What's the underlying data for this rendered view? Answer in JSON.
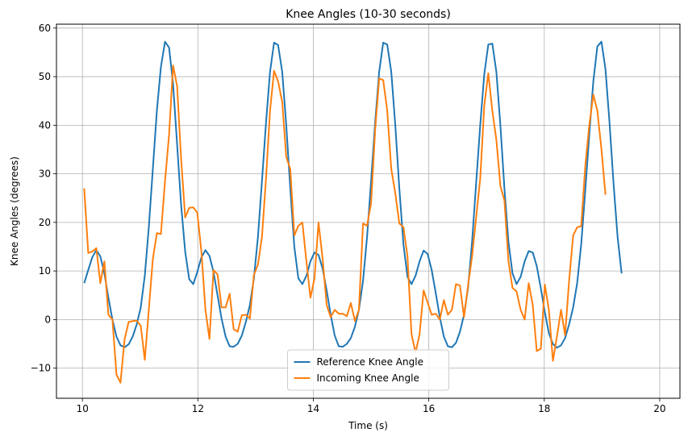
{
  "chart_data": {
    "type": "line",
    "title": "Knee Angles (10-30 seconds)",
    "xlabel": "Time (s)",
    "ylabel": "Knee Angles (degrees)",
    "xlim": [
      9.55,
      20.35
    ],
    "ylim": [
      -16.2,
      60.8
    ],
    "xticks": [
      10,
      12,
      14,
      16,
      18,
      20
    ],
    "yticks": [
      -10,
      0,
      10,
      20,
      30,
      40,
      50,
      60
    ],
    "grid": true,
    "legend_position": "lower-center",
    "series": [
      {
        "name": "Reference Knee Angle",
        "color": "#1f77b4",
        "points": [
          [
            10.03,
            7.5
          ],
          [
            10.1,
            10.2
          ],
          [
            10.17,
            12.8
          ],
          [
            10.24,
            14.3
          ],
          [
            10.31,
            13.0
          ],
          [
            10.38,
            9.5
          ],
          [
            10.45,
            4.5
          ],
          [
            10.52,
            0.0
          ],
          [
            10.59,
            -3.5
          ],
          [
            10.66,
            -5.3
          ],
          [
            10.73,
            -5.7
          ],
          [
            10.8,
            -5.1
          ],
          [
            10.87,
            -3.5
          ],
          [
            10.94,
            -1.0
          ],
          [
            11.01,
            2.5
          ],
          [
            11.08,
            9.0
          ],
          [
            11.15,
            19.0
          ],
          [
            11.22,
            31.0
          ],
          [
            11.29,
            43.0
          ],
          [
            11.36,
            52.0
          ],
          [
            11.43,
            57.2
          ],
          [
            11.5,
            56.0
          ],
          [
            11.57,
            48.5
          ],
          [
            11.64,
            36.0
          ],
          [
            11.71,
            23.5
          ],
          [
            11.78,
            14.0
          ],
          [
            11.85,
            8.3
          ],
          [
            11.92,
            7.3
          ],
          [
            11.99,
            9.8
          ],
          [
            12.06,
            12.8
          ],
          [
            12.13,
            14.3
          ],
          [
            12.2,
            13.1
          ],
          [
            12.27,
            9.8
          ],
          [
            12.34,
            5.0
          ],
          [
            12.41,
            0.2
          ],
          [
            12.48,
            -3.5
          ],
          [
            12.55,
            -5.5
          ],
          [
            12.62,
            -5.6
          ],
          [
            12.69,
            -5.0
          ],
          [
            12.76,
            -3.3
          ],
          [
            12.83,
            -0.5
          ],
          [
            12.9,
            3.0
          ],
          [
            12.97,
            8.5
          ],
          [
            13.04,
            17.0
          ],
          [
            13.11,
            28.5
          ],
          [
            13.18,
            40.5
          ],
          [
            13.25,
            51.0
          ],
          [
            13.32,
            57.0
          ],
          [
            13.39,
            56.5
          ],
          [
            13.46,
            51.0
          ],
          [
            13.53,
            40.0
          ],
          [
            13.6,
            27.0
          ],
          [
            13.67,
            15.0
          ],
          [
            13.74,
            8.5
          ],
          [
            13.81,
            7.3
          ],
          [
            13.88,
            9.0
          ],
          [
            13.95,
            12.0
          ],
          [
            14.02,
            13.8
          ],
          [
            14.09,
            13.3
          ],
          [
            14.16,
            10.5
          ],
          [
            14.23,
            6.0
          ],
          [
            14.3,
            1.0
          ],
          [
            14.37,
            -3.3
          ],
          [
            14.44,
            -5.5
          ],
          [
            14.51,
            -5.6
          ],
          [
            14.58,
            -5.0
          ],
          [
            14.65,
            -3.8
          ],
          [
            14.72,
            -1.5
          ],
          [
            14.79,
            2.0
          ],
          [
            14.86,
            8.0
          ],
          [
            14.93,
            17.0
          ],
          [
            15.0,
            28.5
          ],
          [
            15.07,
            40.5
          ],
          [
            15.14,
            51.0
          ],
          [
            15.21,
            57.0
          ],
          [
            15.28,
            56.6
          ],
          [
            15.35,
            51.0
          ],
          [
            15.42,
            40.0
          ],
          [
            15.49,
            27.0
          ],
          [
            15.56,
            15.5
          ],
          [
            15.63,
            8.8
          ],
          [
            15.7,
            7.3
          ],
          [
            15.77,
            9.0
          ],
          [
            15.84,
            12.0
          ],
          [
            15.91,
            14.2
          ],
          [
            15.98,
            13.5
          ],
          [
            16.05,
            10.2
          ],
          [
            16.12,
            5.5
          ],
          [
            16.19,
            0.5
          ],
          [
            16.26,
            -3.5
          ],
          [
            16.33,
            -5.5
          ],
          [
            16.4,
            -5.7
          ],
          [
            16.47,
            -4.8
          ],
          [
            16.54,
            -2.5
          ],
          [
            16.61,
            1.0
          ],
          [
            16.68,
            6.5
          ],
          [
            16.75,
            16.0
          ],
          [
            16.82,
            28.0
          ],
          [
            16.89,
            40.0
          ],
          [
            16.96,
            50.5
          ],
          [
            17.03,
            56.6
          ],
          [
            17.1,
            56.8
          ],
          [
            17.17,
            51.0
          ],
          [
            17.24,
            40.0
          ],
          [
            17.31,
            27.0
          ],
          [
            17.38,
            16.0
          ],
          [
            17.45,
            9.5
          ],
          [
            17.52,
            7.3
          ],
          [
            17.59,
            8.8
          ],
          [
            17.66,
            12.0
          ],
          [
            17.73,
            14.1
          ],
          [
            17.8,
            13.8
          ],
          [
            17.87,
            11.0
          ],
          [
            17.94,
            6.5
          ],
          [
            18.01,
            1.5
          ],
          [
            18.08,
            -2.8
          ],
          [
            18.15,
            -5.0
          ],
          [
            18.22,
            -5.8
          ],
          [
            18.29,
            -5.3
          ],
          [
            18.36,
            -3.8
          ],
          [
            18.43,
            -1.0
          ],
          [
            18.5,
            2.5
          ],
          [
            18.57,
            7.5
          ],
          [
            18.64,
            15.5
          ],
          [
            18.71,
            26.5
          ],
          [
            18.78,
            38.0
          ],
          [
            18.85,
            49.0
          ],
          [
            18.92,
            56.2
          ],
          [
            18.99,
            57.2
          ],
          [
            19.06,
            51.5
          ],
          [
            19.13,
            40.5
          ],
          [
            19.2,
            28.0
          ],
          [
            19.27,
            17.0
          ],
          [
            19.34,
            9.5
          ]
        ]
      },
      {
        "name": "Incoming Knee Angle",
        "color": "#ff7f0e",
        "points": [
          [
            10.03,
            27.0
          ],
          [
            10.1,
            13.7
          ],
          [
            10.17,
            14.0
          ],
          [
            10.24,
            14.7
          ],
          [
            10.31,
            7.5
          ],
          [
            10.38,
            12.0
          ],
          [
            10.45,
            1.0
          ],
          [
            10.52,
            0.0
          ],
          [
            10.59,
            -11.3
          ],
          [
            10.66,
            -13.0
          ],
          [
            10.73,
            -4.0
          ],
          [
            10.8,
            -0.5
          ],
          [
            10.87,
            -0.3
          ],
          [
            10.94,
            -0.2
          ],
          [
            11.01,
            -1.3
          ],
          [
            11.08,
            -8.3
          ],
          [
            11.15,
            2.0
          ],
          [
            11.22,
            12.5
          ],
          [
            11.29,
            17.8
          ],
          [
            11.36,
            17.6
          ],
          [
            11.43,
            28.5
          ],
          [
            11.5,
            38.0
          ],
          [
            11.57,
            52.3
          ],
          [
            11.64,
            48.0
          ],
          [
            11.71,
            33.0
          ],
          [
            11.78,
            21.0
          ],
          [
            11.85,
            23.0
          ],
          [
            11.92,
            23.1
          ],
          [
            11.99,
            22.0
          ],
          [
            12.06,
            14.0
          ],
          [
            12.13,
            2.0
          ],
          [
            12.2,
            -4.0
          ],
          [
            12.27,
            10.2
          ],
          [
            12.34,
            9.3
          ],
          [
            12.41,
            2.5
          ],
          [
            12.48,
            2.5
          ],
          [
            12.55,
            5.3
          ],
          [
            12.62,
            -2.0
          ],
          [
            12.69,
            -2.5
          ],
          [
            12.76,
            0.9
          ],
          [
            12.83,
            1.0
          ],
          [
            12.9,
            0.2
          ],
          [
            12.97,
            9.2
          ],
          [
            13.04,
            11.3
          ],
          [
            13.11,
            17.0
          ],
          [
            13.18,
            29.0
          ],
          [
            13.25,
            43.0
          ],
          [
            13.32,
            51.2
          ],
          [
            13.39,
            49.0
          ],
          [
            13.46,
            44.8
          ],
          [
            13.53,
            33.5
          ],
          [
            13.6,
            31.0
          ],
          [
            13.67,
            17.3
          ],
          [
            13.74,
            19.3
          ],
          [
            13.81,
            20.0
          ],
          [
            13.88,
            12.0
          ],
          [
            13.95,
            4.5
          ],
          [
            14.02,
            8.5
          ],
          [
            14.09,
            20.0
          ],
          [
            14.16,
            12.5
          ],
          [
            14.23,
            3.0
          ],
          [
            14.3,
            0.5
          ],
          [
            14.37,
            2.0
          ],
          [
            14.44,
            1.2
          ],
          [
            14.51,
            1.2
          ],
          [
            14.58,
            0.7
          ],
          [
            14.65,
            3.4
          ],
          [
            14.72,
            -0.3
          ],
          [
            14.79,
            2.0
          ],
          [
            14.86,
            19.8
          ],
          [
            14.93,
            19.3
          ],
          [
            15.0,
            24.0
          ],
          [
            15.07,
            39.0
          ],
          [
            15.14,
            49.6
          ],
          [
            15.21,
            49.3
          ],
          [
            15.28,
            43.0
          ],
          [
            15.35,
            31.0
          ],
          [
            15.42,
            26.0
          ],
          [
            15.49,
            19.8
          ],
          [
            15.56,
            19.0
          ],
          [
            15.63,
            13.0
          ],
          [
            15.7,
            -3.0
          ],
          [
            15.77,
            -6.8
          ],
          [
            15.84,
            -3.0
          ],
          [
            15.91,
            6.0
          ],
          [
            15.98,
            3.5
          ],
          [
            16.05,
            1.0
          ],
          [
            16.12,
            1.2
          ],
          [
            16.19,
            0.0
          ],
          [
            16.26,
            4.0
          ],
          [
            16.33,
            1.0
          ],
          [
            16.4,
            2.0
          ],
          [
            16.47,
            7.3
          ],
          [
            16.54,
            7.0
          ],
          [
            16.61,
            0.5
          ],
          [
            16.68,
            7.0
          ],
          [
            16.75,
            13.0
          ],
          [
            16.82,
            21.0
          ],
          [
            16.89,
            29.0
          ],
          [
            16.96,
            44.0
          ],
          [
            17.03,
            50.7
          ],
          [
            17.1,
            43.0
          ],
          [
            17.17,
            37.0
          ],
          [
            17.24,
            27.5
          ],
          [
            17.31,
            24.5
          ],
          [
            17.38,
            12.0
          ],
          [
            17.45,
            6.5
          ],
          [
            17.52,
            5.8
          ],
          [
            17.59,
            2.0
          ],
          [
            17.66,
            0.0
          ],
          [
            17.73,
            7.5
          ],
          [
            17.8,
            3.0
          ],
          [
            17.87,
            -6.5
          ],
          [
            17.94,
            -6.0
          ],
          [
            18.01,
            7.2
          ],
          [
            18.08,
            2.0
          ],
          [
            18.15,
            -8.5
          ],
          [
            18.22,
            -3.5
          ],
          [
            18.29,
            2.0
          ],
          [
            18.36,
            -3.2
          ],
          [
            18.43,
            8.0
          ],
          [
            18.5,
            17.3
          ],
          [
            18.57,
            19.0
          ],
          [
            18.64,
            19.2
          ],
          [
            18.71,
            31.5
          ],
          [
            18.78,
            40.0
          ],
          [
            18.85,
            46.3
          ],
          [
            18.92,
            43.0
          ],
          [
            18.99,
            35.0
          ],
          [
            19.06,
            25.7
          ]
        ]
      }
    ]
  }
}
